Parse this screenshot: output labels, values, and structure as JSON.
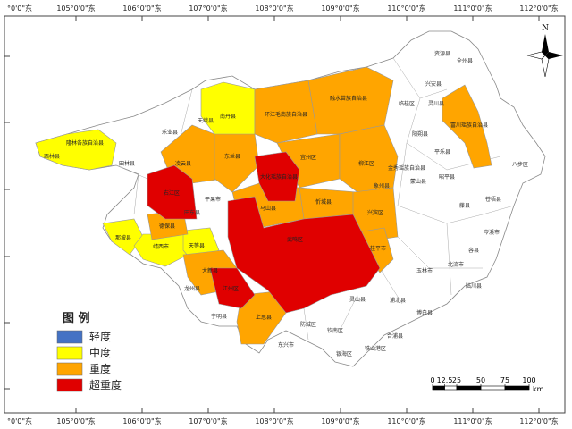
{
  "lon_labels": [
    "°0'0\"东",
    "105°0'0\"东",
    "106°0'0\"东",
    "107°0'0\"东",
    "108°0'0\"东",
    "109°0'0\"东",
    "110°0'0\"东",
    "111°0'0\"东",
    "112°0'0\"东"
  ],
  "north": "N",
  "legend": {
    "title": "图 例",
    "items": [
      {
        "label": "轻度",
        "color": "#4472c4"
      },
      {
        "label": "中度",
        "color": "#ffff00"
      },
      {
        "label": "重度",
        "color": "#ffa500"
      },
      {
        "label": "超重度",
        "color": "#e00000"
      }
    ]
  },
  "regions": [
    {
      "name": "隆林各族自治县",
      "level": "中度"
    },
    {
      "name": "南丹县",
      "level": "中度"
    },
    {
      "name": "那坡县",
      "level": "中度"
    },
    {
      "name": "靖西市",
      "level": "中度"
    },
    {
      "name": "天等县",
      "level": "中度"
    },
    {
      "name": "凌云县",
      "level": "重度"
    },
    {
      "name": "东兰县",
      "level": "重度"
    },
    {
      "name": "环江毛南族自治县",
      "level": "重度"
    },
    {
      "name": "融水苗族自治县",
      "level": "重度"
    },
    {
      "name": "宜州区",
      "level": "重度"
    },
    {
      "name": "柳江区",
      "level": "重度"
    },
    {
      "name": "忻城县",
      "level": "重度"
    },
    {
      "name": "兴宾区",
      "level": "重度"
    },
    {
      "name": "德保县",
      "level": "重度"
    },
    {
      "name": "大新县",
      "level": "重度"
    },
    {
      "name": "上思县",
      "level": "重度"
    },
    {
      "name": "富川瑶族自治县",
      "level": "重度"
    },
    {
      "name": "桂平市",
      "level": "重度"
    },
    {
      "name": "马山县",
      "level": "重度"
    },
    {
      "name": "右江区",
      "level": "超重度"
    },
    {
      "name": "大化瑶族自治县",
      "level": "超重度"
    },
    {
      "name": "武鸣区",
      "level": "超重度"
    },
    {
      "name": "江州区",
      "level": "超重度"
    }
  ],
  "place_names": [
    "西林县",
    "田林县",
    "乐业县",
    "天峨县",
    "资源县",
    "全州县",
    "兴安县",
    "灵川县",
    "临桂区",
    "阳朔县",
    "平乐县",
    "昭平县",
    "蒙山县",
    "藤县",
    "苍梧县",
    "岑溪市",
    "容县",
    "北流市",
    "玉林市",
    "博白县",
    "陆川县",
    "浦北县",
    "灵山县",
    "钦南区",
    "合浦县",
    "东兴市",
    "防城区",
    "宁明县",
    "龙州县",
    "田东县",
    "平果市",
    "象州县",
    "金秀瑶族自治县",
    "八步区",
    "银海区",
    "铁山港区"
  ],
  "scale": {
    "ticks": [
      0,
      12.5,
      25,
      50,
      75,
      100
    ],
    "unit": "km"
  }
}
